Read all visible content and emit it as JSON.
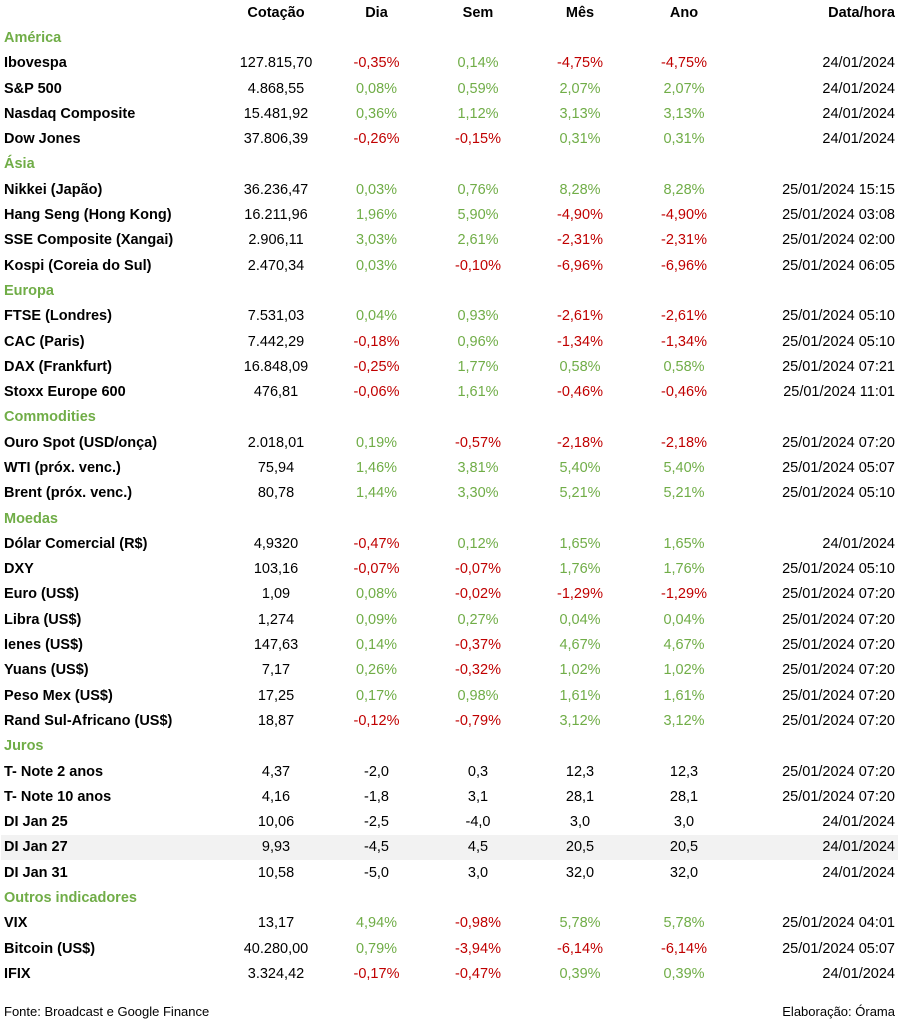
{
  "columns": {
    "name": "",
    "cotacao": "Cotação",
    "dia": "Dia",
    "sem": "Sem",
    "mes": "Mês",
    "ano": "Ano",
    "data_hora": "Data/hora"
  },
  "colors": {
    "section": "#70ad47",
    "positive": "#70ad47",
    "negative": "#c00000"
  },
  "sections": [
    {
      "title": "América",
      "colored": true,
      "rows": [
        {
          "name": "Ibovespa",
          "cotacao": "127.815,70",
          "dia": "-0,35%",
          "sem": "0,14%",
          "mes": "-4,75%",
          "ano": "-4,75%",
          "data_hora": "24/01/2024"
        },
        {
          "name": "S&P 500",
          "cotacao": "4.868,55",
          "dia": "0,08%",
          "sem": "0,59%",
          "mes": "2,07%",
          "ano": "2,07%",
          "data_hora": "24/01/2024"
        },
        {
          "name": "Nasdaq Composite",
          "cotacao": "15.481,92",
          "dia": "0,36%",
          "sem": "1,12%",
          "mes": "3,13%",
          "ano": "3,13%",
          "data_hora": "24/01/2024"
        },
        {
          "name": "Dow Jones",
          "cotacao": "37.806,39",
          "dia": "-0,26%",
          "sem": "-0,15%",
          "mes": "0,31%",
          "ano": "0,31%",
          "data_hora": "24/01/2024"
        }
      ]
    },
    {
      "title": "Ásia",
      "colored": true,
      "rows": [
        {
          "name": "Nikkei (Japão)",
          "cotacao": "36.236,47",
          "dia": "0,03%",
          "sem": "0,76%",
          "mes": "8,28%",
          "ano": "8,28%",
          "data_hora": "25/01/2024 15:15"
        },
        {
          "name": "Hang Seng (Hong Kong)",
          "cotacao": "16.211,96",
          "dia": "1,96%",
          "sem": "5,90%",
          "mes": "-4,90%",
          "ano": "-4,90%",
          "data_hora": "25/01/2024 03:08"
        },
        {
          "name": "SSE Composite (Xangai)",
          "cotacao": "2.906,11",
          "dia": "3,03%",
          "sem": "2,61%",
          "mes": "-2,31%",
          "ano": "-2,31%",
          "data_hora": "25/01/2024 02:00"
        },
        {
          "name": "Kospi (Coreia do Sul)",
          "cotacao": "2.470,34",
          "dia": "0,03%",
          "sem": "-0,10%",
          "mes": "-6,96%",
          "ano": "-6,96%",
          "data_hora": "25/01/2024 06:05"
        }
      ]
    },
    {
      "title": "Europa",
      "colored": true,
      "rows": [
        {
          "name": "FTSE (Londres)",
          "cotacao": "7.531,03",
          "dia": "0,04%",
          "sem": "0,93%",
          "mes": "-2,61%",
          "ano": "-2,61%",
          "data_hora": "25/01/2024 05:10"
        },
        {
          "name": "CAC (Paris)",
          "cotacao": "7.442,29",
          "dia": "-0,18%",
          "sem": "0,96%",
          "mes": "-1,34%",
          "ano": "-1,34%",
          "data_hora": "25/01/2024 05:10"
        },
        {
          "name": "DAX (Frankfurt)",
          "cotacao": "16.848,09",
          "dia": "-0,25%",
          "sem": "1,77%",
          "mes": "0,58%",
          "ano": "0,58%",
          "data_hora": "25/01/2024 07:21"
        },
        {
          "name": "Stoxx Europe 600",
          "cotacao": "476,81",
          "dia": "-0,06%",
          "sem": "1,61%",
          "mes": "-0,46%",
          "ano": "-0,46%",
          "data_hora": "25/01/2024 11:01"
        }
      ]
    },
    {
      "title": "Commodities",
      "colored": true,
      "rows": [
        {
          "name": "Ouro Spot (USD/onça)",
          "cotacao": "2.018,01",
          "dia": "0,19%",
          "sem": "-0,57%",
          "mes": "-2,18%",
          "ano": "-2,18%",
          "data_hora": "25/01/2024 07:20"
        },
        {
          "name": "WTI (próx. venc.)",
          "cotacao": "75,94",
          "dia": "1,46%",
          "sem": "3,81%",
          "mes": "5,40%",
          "ano": "5,40%",
          "data_hora": "25/01/2024 05:07"
        },
        {
          "name": "Brent (próx. venc.)",
          "cotacao": "80,78",
          "dia": "1,44%",
          "sem": "3,30%",
          "mes": "5,21%",
          "ano": "5,21%",
          "data_hora": "25/01/2024 05:10"
        }
      ]
    },
    {
      "title": "Moedas",
      "colored": true,
      "rows": [
        {
          "name": "Dólar Comercial (R$)",
          "cotacao": "4,9320",
          "dia": "-0,47%",
          "sem": "0,12%",
          "mes": "1,65%",
          "ano": "1,65%",
          "data_hora": "24/01/2024"
        },
        {
          "name": "DXY",
          "cotacao": "103,16",
          "dia": "-0,07%",
          "sem": "-0,07%",
          "mes": "1,76%",
          "ano": "1,76%",
          "data_hora": "25/01/2024 05:10"
        },
        {
          "name": "Euro (US$)",
          "cotacao": "1,09",
          "dia": "0,08%",
          "sem": "-0,02%",
          "mes": "-1,29%",
          "ano": "-1,29%",
          "data_hora": "25/01/2024 07:20"
        },
        {
          "name": "Libra (US$)",
          "cotacao": "1,274",
          "dia": "0,09%",
          "sem": "0,27%",
          "mes": "0,04%",
          "ano": "0,04%",
          "data_hora": "25/01/2024 07:20"
        },
        {
          "name": "Ienes (US$)",
          "cotacao": "147,63",
          "dia": "0,14%",
          "sem": "-0,37%",
          "mes": "4,67%",
          "ano": "4,67%",
          "data_hora": "25/01/2024 07:20"
        },
        {
          "name": "Yuans (US$)",
          "cotacao": "7,17",
          "dia": "0,26%",
          "sem": "-0,32%",
          "mes": "1,02%",
          "ano": "1,02%",
          "data_hora": "25/01/2024 07:20"
        },
        {
          "name": "Peso Mex (US$)",
          "cotacao": "17,25",
          "dia": "0,17%",
          "sem": "0,98%",
          "mes": "1,61%",
          "ano": "1,61%",
          "data_hora": "25/01/2024 07:20"
        },
        {
          "name": "Rand Sul-Africano (US$)",
          "cotacao": "18,87",
          "dia": "-0,12%",
          "sem": "-0,79%",
          "mes": "3,12%",
          "ano": "3,12%",
          "data_hora": "25/01/2024 07:20"
        }
      ]
    },
    {
      "title": "Juros",
      "colored": false,
      "rows": [
        {
          "name": "T- Note 2 anos",
          "cotacao": "4,37",
          "dia": "-2,0",
          "sem": "0,3",
          "mes": "12,3",
          "ano": "12,3",
          "data_hora": "25/01/2024 07:20"
        },
        {
          "name": "T- Note 10 anos",
          "cotacao": "4,16",
          "dia": "-1,8",
          "sem": "3,1",
          "mes": "28,1",
          "ano": "28,1",
          "data_hora": "25/01/2024 07:20"
        },
        {
          "name": "DI Jan 25",
          "cotacao": "10,06",
          "dia": "-2,5",
          "sem": "-4,0",
          "mes": "3,0",
          "ano": "3,0",
          "data_hora": "24/01/2024"
        },
        {
          "name": "DI Jan 27",
          "cotacao": "9,93",
          "dia": "-4,5",
          "sem": "4,5",
          "mes": "20,5",
          "ano": "20,5",
          "data_hora": "24/01/2024"
        },
        {
          "name": "DI Jan 31",
          "cotacao": "10,58",
          "dia": "-5,0",
          "sem": "3,0",
          "mes": "32,0",
          "ano": "32,0",
          "data_hora": "24/01/2024"
        }
      ]
    },
    {
      "title": "Outros indicadores",
      "colored": true,
      "rows": [
        {
          "name": "VIX",
          "cotacao": "13,17",
          "dia": "4,94%",
          "sem": "-0,98%",
          "mes": "5,78%",
          "ano": "5,78%",
          "data_hora": "25/01/2024 04:01"
        },
        {
          "name": "Bitcoin (US$)",
          "cotacao": "40.280,00",
          "dia": "0,79%",
          "sem": "-3,94%",
          "mes": "-6,14%",
          "ano": "-6,14%",
          "data_hora": "25/01/2024 05:07"
        },
        {
          "name": "IFIX",
          "cotacao": "3.324,42",
          "dia": "-0,17%",
          "sem": "-0,47%",
          "mes": "0,39%",
          "ano": "0,39%",
          "data_hora": "24/01/2024"
        }
      ]
    }
  ],
  "footer": {
    "source": "Fonte: Broadcast e Google Finance",
    "credit": "Elaboração: Órama"
  }
}
